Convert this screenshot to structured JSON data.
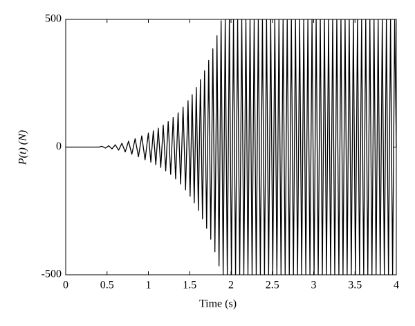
{
  "chart_data": {
    "type": "line",
    "xlabel": "Time (s)",
    "ylabel": "P(t) (N)",
    "color": "#000000",
    "xlim": [
      0,
      4
    ],
    "xticks": [
      0,
      0.5,
      1,
      1.5,
      2,
      2.5,
      3,
      3.5,
      4
    ],
    "ylim": [
      -500,
      500
    ],
    "yticks": [
      -500,
      0,
      500
    ],
    "x": [
      0,
      0.4,
      0.44,
      0.48,
      0.52,
      0.56,
      0.6,
      0.64,
      0.68,
      0.72,
      0.76,
      0.8,
      0.84,
      0.88,
      0.92,
      0.96,
      1.0,
      1.03,
      1.06,
      1.09,
      1.12,
      1.15,
      1.18,
      1.21,
      1.24,
      1.27,
      1.3,
      1.33,
      1.36,
      1.39,
      1.42,
      1.45,
      1.48,
      1.505,
      1.53,
      1.555,
      1.58,
      1.605,
      1.63,
      1.655,
      1.68,
      1.705,
      1.73,
      1.755,
      1.78,
      1.805,
      1.83,
      1.855,
      1.88,
      1.905,
      1.93,
      1.955,
      1.98,
      2.005,
      2.03,
      2.055,
      2.08,
      2.105,
      2.13,
      2.155,
      2.18,
      2.205,
      2.23,
      2.255,
      2.28,
      2.305,
      2.33,
      2.355,
      2.38,
      2.405,
      2.43,
      2.455,
      2.48,
      2.505,
      2.53,
      2.555,
      2.58,
      2.605,
      2.63,
      2.655,
      2.68,
      2.705,
      2.73,
      2.755,
      2.78,
      2.805,
      2.83,
      2.855,
      2.88,
      2.905,
      2.93,
      2.955,
      2.98,
      3.005,
      3.03,
      3.055,
      3.08,
      3.105,
      3.13,
      3.155,
      3.18,
      3.205,
      3.23,
      3.255,
      3.28,
      3.305,
      3.33,
      3.355,
      3.38,
      3.405,
      3.43,
      3.455,
      3.48,
      3.505,
      3.53,
      3.555,
      3.58,
      3.605,
      3.63,
      3.655,
      3.68,
      3.705,
      3.73,
      3.755,
      3.78,
      3.805,
      3.83,
      3.855,
      3.88,
      3.905,
      3.93,
      3.955,
      3.98,
      4
    ],
    "values": [
      0,
      0,
      3,
      -4,
      5,
      -7,
      9,
      -12,
      15,
      -19,
      23,
      -28,
      33,
      -38,
      44,
      -50,
      55,
      -59,
      64,
      -69,
      74,
      -80,
      86,
      -93,
      100,
      -107,
      116,
      -125,
      134,
      -145,
      156,
      -168,
      181,
      -192,
      205,
      -218,
      233,
      -248,
      264,
      -281,
      299,
      -318,
      339,
      -361,
      385,
      -410,
      436,
      -465,
      495,
      -500,
      500,
      -500,
      500,
      -500,
      500,
      -500,
      500,
      -500,
      500,
      -500,
      500,
      -500,
      500,
      -500,
      500,
      -500,
      500,
      -500,
      500,
      -500,
      500,
      -500,
      500,
      -500,
      500,
      -500,
      500,
      -500,
      500,
      -500,
      500,
      -500,
      500,
      -500,
      500,
      -500,
      500,
      -500,
      500,
      -500,
      500,
      -500,
      500,
      -500,
      500,
      -500,
      500,
      -500,
      500,
      -500,
      500,
      -500,
      500,
      -500,
      500,
      -500,
      500,
      -500,
      500,
      -500,
      500,
      -500,
      500,
      -500,
      500,
      -500,
      500,
      -500,
      500,
      -500,
      500,
      -500,
      500,
      -500,
      500,
      -500,
      500,
      -500,
      500,
      -500,
      500,
      -500,
      500,
      0
    ]
  }
}
